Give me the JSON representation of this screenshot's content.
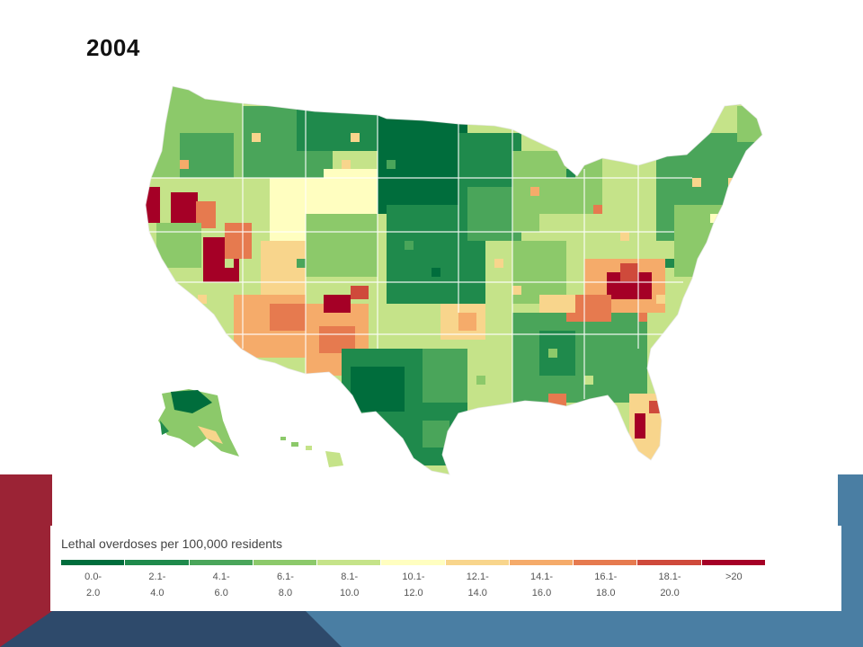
{
  "slide": {
    "title": "2004",
    "colors": {
      "red_accent": "#9b2335",
      "dark_blue": "#2e4a6b",
      "steel_blue": "#4a7ea3"
    }
  },
  "map": {
    "region": "United States counties",
    "palette": [
      "#006d3c",
      "#1f8a4c",
      "#4aa55a",
      "#8cc96a",
      "#c5e389",
      "#fffec0",
      "#f8d58c",
      "#f5ab6a",
      "#e67a4f",
      "#cf4a3b",
      "#a50026"
    ]
  },
  "legend": {
    "title": "Lethal overdoses per 100,000 residents",
    "bins": [
      {
        "top": "0.0-",
        "bottom": "2.0",
        "color": "#006d3c"
      },
      {
        "top": "2.1-",
        "bottom": "4.0",
        "color": "#1f8a4c"
      },
      {
        "top": "4.1-",
        "bottom": "6.0",
        "color": "#4aa55a"
      },
      {
        "top": "6.1-",
        "bottom": "8.0",
        "color": "#8cc96a"
      },
      {
        "top": "8.1-",
        "bottom": "10.0",
        "color": "#c5e389"
      },
      {
        "top": "10.1-",
        "bottom": "12.0",
        "color": "#fffec0"
      },
      {
        "top": "12.1-",
        "bottom": "14.0",
        "color": "#f8d58c"
      },
      {
        "top": "14.1-",
        "bottom": "16.0",
        "color": "#f5ab6a"
      },
      {
        "top": "16.1-",
        "bottom": "18.0",
        "color": "#e67a4f"
      },
      {
        "top": "18.1-",
        "bottom": "20.0",
        "color": "#cf4a3b"
      },
      {
        "top": ">20",
        "bottom": "",
        "color": "#a50026"
      }
    ]
  }
}
